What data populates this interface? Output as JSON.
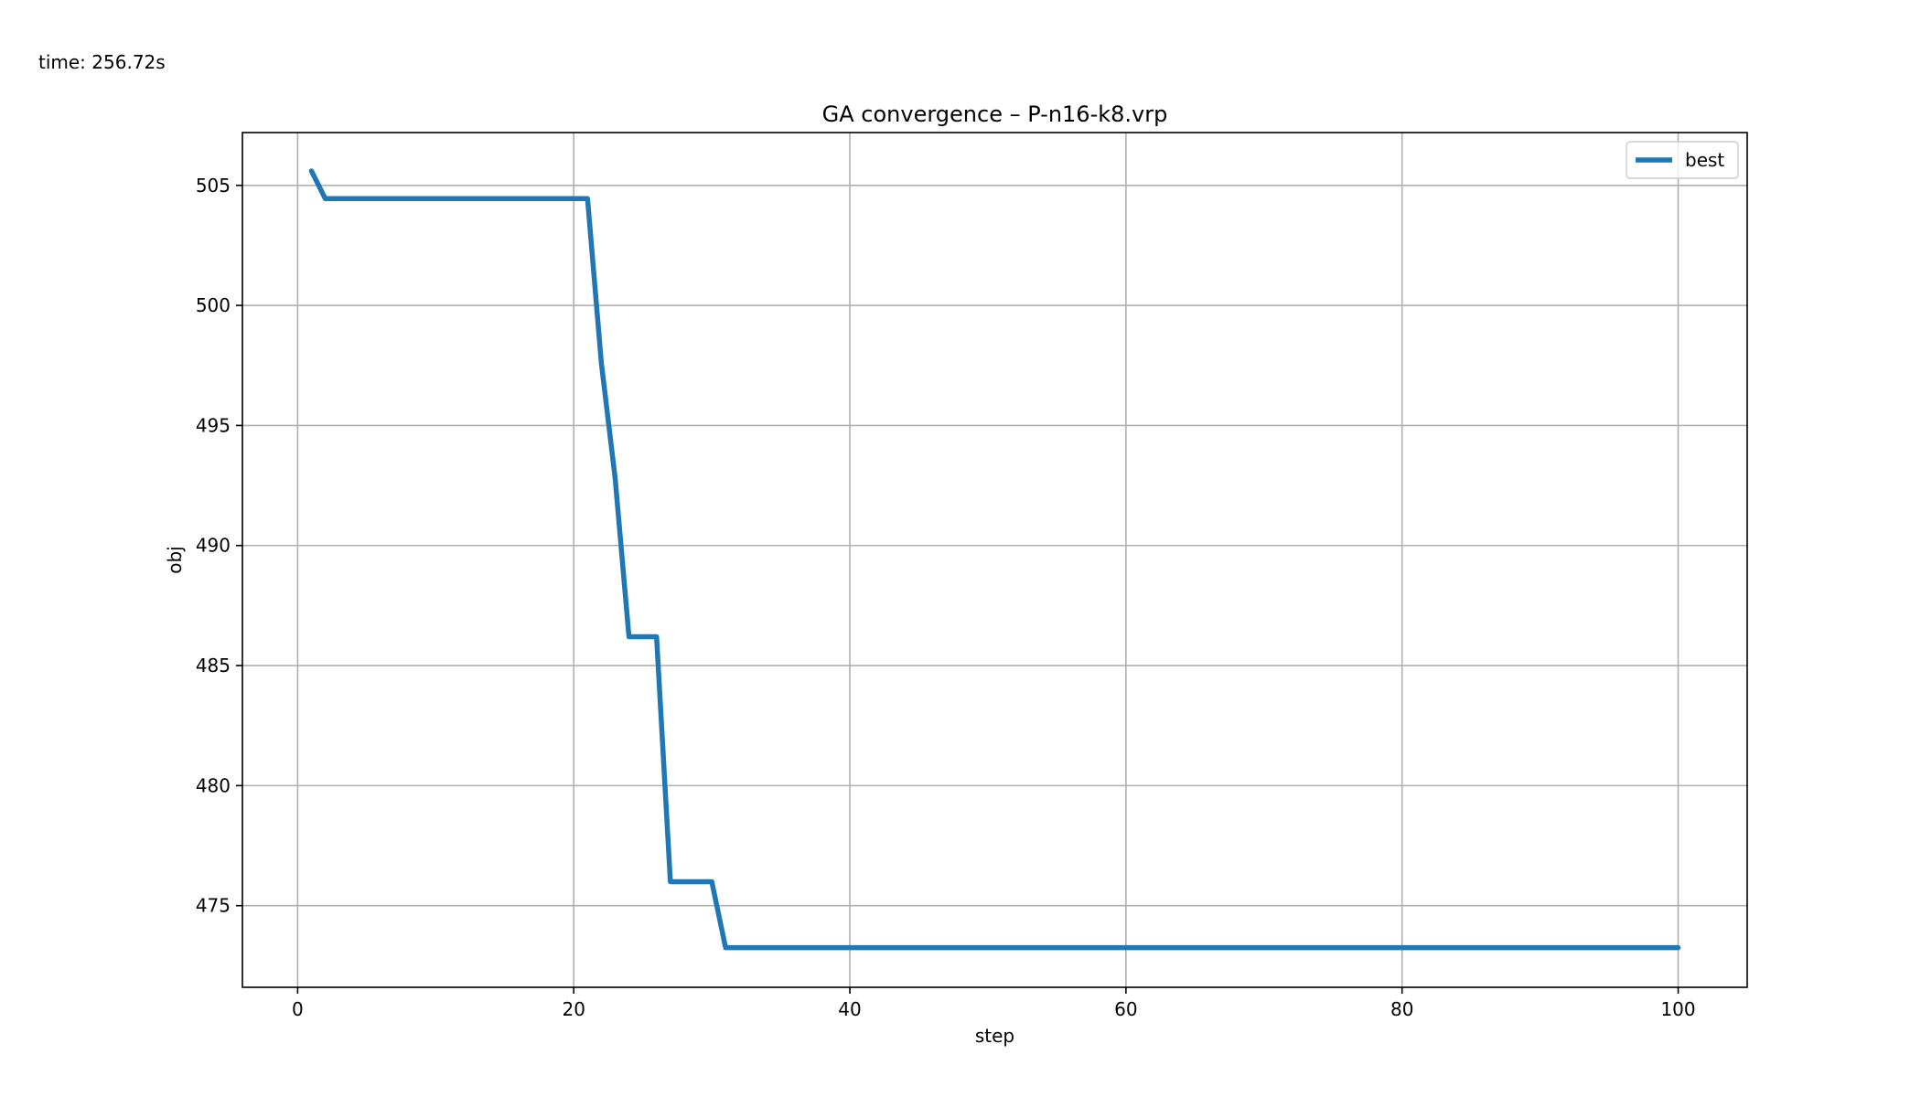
{
  "header": {
    "time_label": "time: 256.72s"
  },
  "colors": {
    "series": "#1f77b4",
    "grid": "#b0b0b0",
    "axis": "#000000",
    "legend_border": "#cccccc"
  },
  "chart_data": {
    "type": "line",
    "title": "GA convergence – P-n16-k8.vrp",
    "xlabel": "step",
    "ylabel": "obj",
    "xlim": [
      -4,
      105
    ],
    "ylim": [
      471.6,
      507.2
    ],
    "xticks": [
      0,
      20,
      40,
      60,
      80,
      100
    ],
    "yticks": [
      475,
      480,
      485,
      490,
      495,
      500,
      505
    ],
    "grid": true,
    "legend_position": "top-right",
    "series": [
      {
        "name": "best",
        "x": [
          1,
          2,
          21,
          22,
          23,
          24,
          26,
          27,
          30,
          31,
          100
        ],
        "y": [
          505.6,
          504.45,
          504.45,
          497.6,
          492.8,
          486.2,
          486.2,
          476.0,
          476.0,
          473.25,
          473.25
        ]
      }
    ]
  }
}
